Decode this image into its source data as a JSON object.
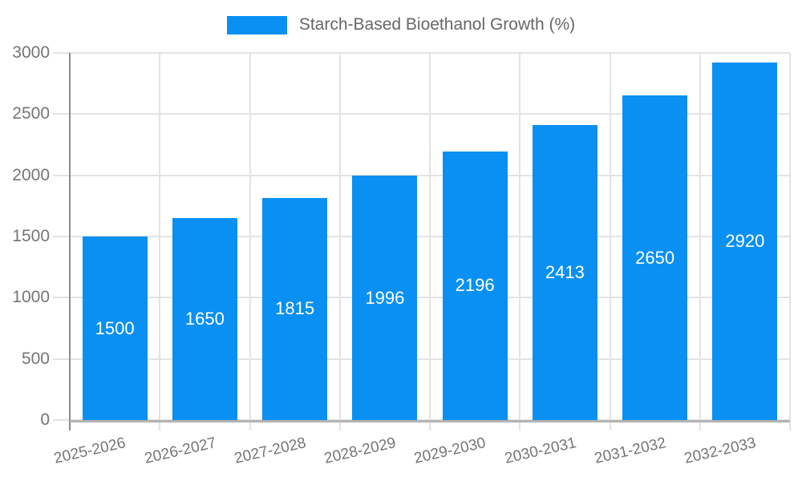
{
  "legend": {
    "label": "Starch-Based Bioethanol Growth (%)"
  },
  "colors": {
    "bar": "#0990f2",
    "grid": "#e3e3e3",
    "y_axis": "#8c8c8c",
    "x_axis": "#b3b3b3",
    "tick_text": "#757575",
    "legend_text": "#666666",
    "bar_label_text": "#ffffff"
  },
  "chart_data": {
    "type": "bar",
    "title": "",
    "legend_entries": [
      "Starch-Based Bioethanol Growth (%)"
    ],
    "legend_position": "top-center",
    "categories": [
      "2025-2026",
      "2026-2027",
      "2027-2028",
      "2028-2029",
      "2029-2030",
      "2030-2031",
      "2031-2032",
      "2032-2033"
    ],
    "values": [
      1500,
      1650,
      1815,
      1996,
      2196,
      2413,
      2650,
      2920
    ],
    "value_labels_shown": true,
    "value_label_position": "inside-center",
    "xlabel": "",
    "ylabel": "",
    "ylim": [
      0,
      3000
    ],
    "yticks": [
      0,
      500,
      1000,
      1500,
      2000,
      2500,
      3000
    ],
    "x_tick_rotation_deg": -13,
    "grid": true
  }
}
